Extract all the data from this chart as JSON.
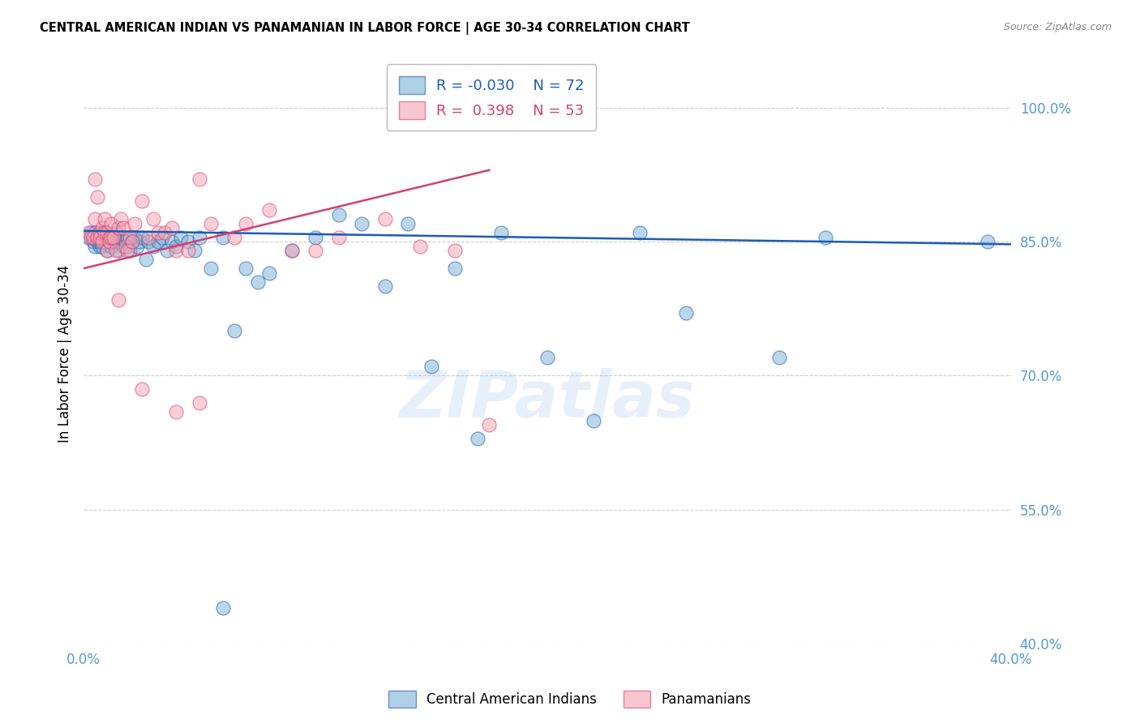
{
  "title": "CENTRAL AMERICAN INDIAN VS PANAMANIAN IN LABOR FORCE | AGE 30-34 CORRELATION CHART",
  "source": "Source: ZipAtlas.com",
  "ylabel": "In Labor Force | Age 30-34",
  "watermark": "ZIPatlas",
  "legend_blue_r": "-0.030",
  "legend_blue_n": "72",
  "legend_pink_r": "0.398",
  "legend_pink_n": "53",
  "xlim": [
    0.0,
    0.4
  ],
  "ylim": [
    0.4,
    1.05
  ],
  "yticks": [
    0.4,
    0.55,
    0.7,
    0.85,
    1.0
  ],
  "ytick_labels": [
    "40.0%",
    "55.0%",
    "70.0%",
    "85.0%",
    "100.0%"
  ],
  "xticks": [
    0.0,
    0.1,
    0.2,
    0.3,
    0.4
  ],
  "xtick_labels": [
    "0.0%",
    "",
    "",
    "",
    "40.0%"
  ],
  "blue_scatter_x": [
    0.002,
    0.003,
    0.004,
    0.004,
    0.005,
    0.005,
    0.006,
    0.006,
    0.007,
    0.007,
    0.008,
    0.008,
    0.008,
    0.009,
    0.009,
    0.01,
    0.01,
    0.011,
    0.011,
    0.012,
    0.012,
    0.013,
    0.013,
    0.014,
    0.015,
    0.015,
    0.016,
    0.017,
    0.018,
    0.019,
    0.02,
    0.021,
    0.022,
    0.023,
    0.024,
    0.025,
    0.027,
    0.028,
    0.03,
    0.032,
    0.034,
    0.036,
    0.038,
    0.04,
    0.042,
    0.045,
    0.048,
    0.05,
    0.055,
    0.06,
    0.065,
    0.07,
    0.075,
    0.08,
    0.09,
    0.1,
    0.11,
    0.12,
    0.13,
    0.14,
    0.15,
    0.16,
    0.17,
    0.18,
    0.2,
    0.22,
    0.24,
    0.26,
    0.3,
    0.32,
    0.06,
    0.39
  ],
  "blue_scatter_y": [
    0.855,
    0.86,
    0.855,
    0.85,
    0.845,
    0.86,
    0.85,
    0.855,
    0.845,
    0.85,
    0.86,
    0.855,
    0.845,
    0.85,
    0.86,
    0.855,
    0.84,
    0.85,
    0.855,
    0.845,
    0.855,
    0.85,
    0.855,
    0.86,
    0.84,
    0.85,
    0.855,
    0.845,
    0.85,
    0.855,
    0.84,
    0.85,
    0.855,
    0.845,
    0.85,
    0.855,
    0.83,
    0.85,
    0.845,
    0.85,
    0.855,
    0.84,
    0.85,
    0.845,
    0.855,
    0.85,
    0.84,
    0.855,
    0.82,
    0.855,
    0.75,
    0.82,
    0.805,
    0.815,
    0.84,
    0.855,
    0.88,
    0.87,
    0.8,
    0.87,
    0.71,
    0.82,
    0.63,
    0.86,
    0.72,
    0.65,
    0.86,
    0.77,
    0.72,
    0.855,
    0.44,
    0.85
  ],
  "pink_scatter_x": [
    0.002,
    0.003,
    0.004,
    0.005,
    0.005,
    0.006,
    0.006,
    0.007,
    0.007,
    0.008,
    0.008,
    0.009,
    0.009,
    0.01,
    0.01,
    0.011,
    0.011,
    0.012,
    0.012,
    0.013,
    0.014,
    0.015,
    0.016,
    0.017,
    0.018,
    0.019,
    0.02,
    0.021,
    0.022,
    0.025,
    0.028,
    0.03,
    0.032,
    0.035,
    0.038,
    0.04,
    0.045,
    0.05,
    0.055,
    0.065,
    0.07,
    0.08,
    0.09,
    0.1,
    0.11,
    0.13,
    0.145,
    0.05,
    0.16,
    0.175,
    0.015,
    0.025,
    0.04
  ],
  "pink_scatter_y": [
    0.86,
    0.855,
    0.855,
    0.92,
    0.875,
    0.9,
    0.855,
    0.86,
    0.855,
    0.865,
    0.85,
    0.875,
    0.86,
    0.86,
    0.84,
    0.855,
    0.85,
    0.87,
    0.855,
    0.855,
    0.84,
    0.865,
    0.875,
    0.865,
    0.845,
    0.84,
    0.855,
    0.85,
    0.87,
    0.895,
    0.855,
    0.875,
    0.86,
    0.86,
    0.865,
    0.84,
    0.84,
    0.92,
    0.87,
    0.855,
    0.87,
    0.885,
    0.84,
    0.84,
    0.855,
    0.875,
    0.845,
    0.67,
    0.84,
    0.645,
    0.785,
    0.685,
    0.66
  ],
  "blue_line_x": [
    0.0,
    0.4
  ],
  "blue_line_y": [
    0.862,
    0.847
  ],
  "pink_line_x": [
    0.0,
    0.175
  ],
  "pink_line_y": [
    0.82,
    0.93
  ],
  "blue_color": "#7BAFD4",
  "pink_color": "#F4A0B0",
  "blue_line_color": "#1B5CB5",
  "pink_line_color": "#D44070",
  "label_color": "#5599CC",
  "grid_color": "#CCCCCC",
  "background_color": "#FFFFFF"
}
